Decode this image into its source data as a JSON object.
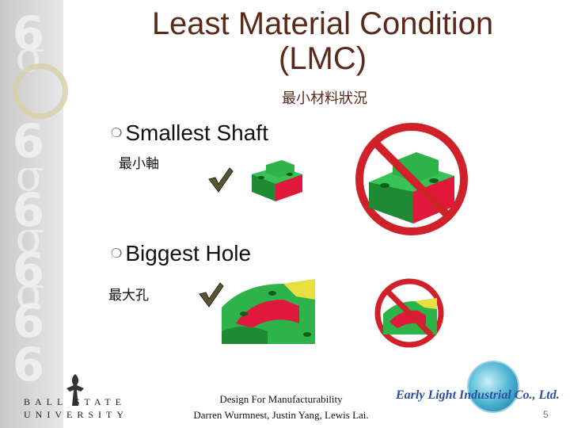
{
  "title_line1": "Least Material Condition",
  "title_line2": "(LMC)",
  "subtitle": "最小材料狀況",
  "bullets": [
    {
      "label": "Smallest Shaft",
      "chinese": "最小軸"
    },
    {
      "label": "Biggest Hole",
      "chinese": "最大孔"
    }
  ],
  "footer": {
    "course": "Design For Manufacturability",
    "authors": "Darren Wurmnest, Justin Yang, Lewis Lai."
  },
  "page_number": "5",
  "logo_left": {
    "top": "BALL STATE",
    "bottom": "UNIVERSITY"
  },
  "logo_right": {
    "company": "Early Light Industrial Co., Ltd."
  },
  "colors": {
    "title": "#5a2a1a",
    "check": "#4a4a2a",
    "part_green": "#2db34a",
    "part_red": "#e0193c",
    "no_sign": "#d0202a"
  }
}
